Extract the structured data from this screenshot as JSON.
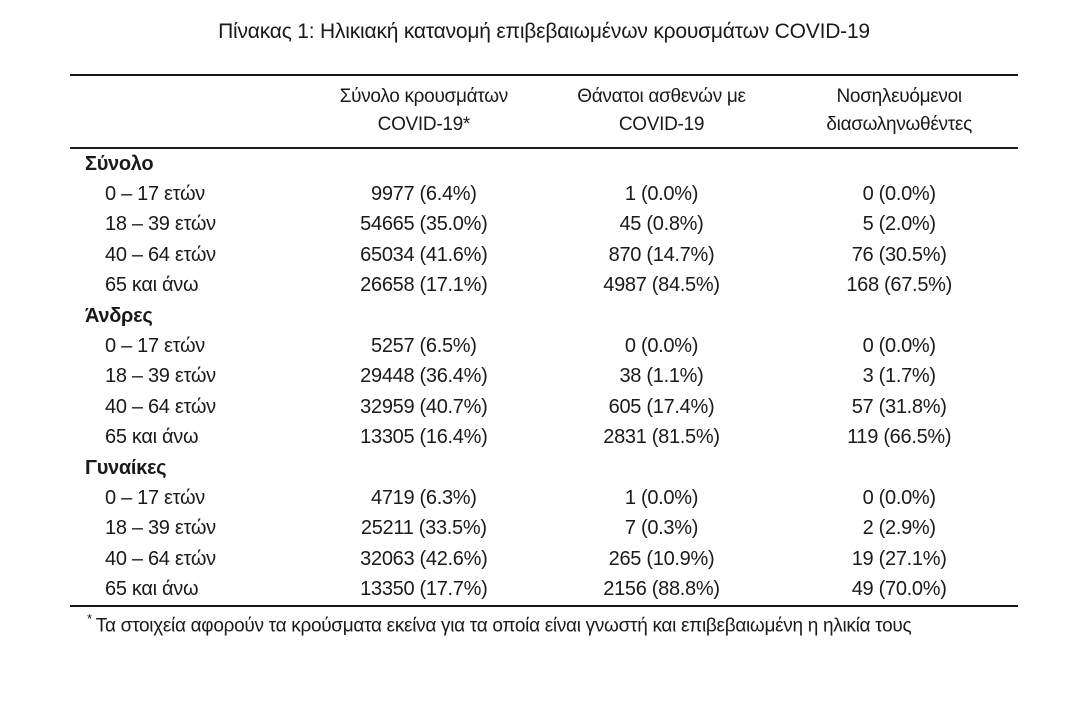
{
  "title": "Πίνακας 1: Ηλικιακή κατανομή επιβεβαιωμένων κρουσμάτων COVID-19",
  "table": {
    "columns": [
      {
        "line1": "Σύνολο κρουσμάτων",
        "line2": "COVID-19*"
      },
      {
        "line1": "Θάνατοι ασθενών με",
        "line2": "COVID-19"
      },
      {
        "line1": "Νοσηλευόμενοι",
        "line2": "διασωληνωθέντες"
      }
    ],
    "sections": [
      {
        "label": "Σύνολο",
        "rows": [
          {
            "age": "0 – 17 ετών",
            "cases": "9977 (6.4%)",
            "deaths": "1 (0.0%)",
            "intubated": "0 (0.0%)"
          },
          {
            "age": "18 – 39 ετών",
            "cases": "54665 (35.0%)",
            "deaths": "45 (0.8%)",
            "intubated": "5 (2.0%)"
          },
          {
            "age": "40 – 64 ετών",
            "cases": "65034 (41.6%)",
            "deaths": "870 (14.7%)",
            "intubated": "76 (30.5%)"
          },
          {
            "age": "65 και άνω",
            "cases": "26658 (17.1%)",
            "deaths": "4987 (84.5%)",
            "intubated": "168 (67.5%)"
          }
        ]
      },
      {
        "label": "Άνδρες",
        "rows": [
          {
            "age": "0 – 17 ετών",
            "cases": "5257 (6.5%)",
            "deaths": "0 (0.0%)",
            "intubated": "0 (0.0%)"
          },
          {
            "age": "18 – 39 ετών",
            "cases": "29448 (36.4%)",
            "deaths": "38 (1.1%)",
            "intubated": "3 (1.7%)"
          },
          {
            "age": "40 – 64 ετών",
            "cases": "32959 (40.7%)",
            "deaths": "605 (17.4%)",
            "intubated": "57 (31.8%)"
          },
          {
            "age": "65 και άνω",
            "cases": "13305 (16.4%)",
            "deaths": "2831 (81.5%)",
            "intubated": "119 (66.5%)"
          }
        ]
      },
      {
        "label": "Γυναίκες",
        "rows": [
          {
            "age": "0 – 17 ετών",
            "cases": "4719 (6.3%)",
            "deaths": "1 (0.0%)",
            "intubated": "0 (0.0%)"
          },
          {
            "age": "18 – 39 ετών",
            "cases": "25211 (33.5%)",
            "deaths": "7 (0.3%)",
            "intubated": "2 (2.9%)"
          },
          {
            "age": "40 – 64 ετών",
            "cases": "32063 (42.6%)",
            "deaths": "265 (10.9%)",
            "intubated": "19 (27.1%)"
          },
          {
            "age": "65 και άνω",
            "cases": "13350 (17.7%)",
            "deaths": "2156 (88.8%)",
            "intubated": "49 (70.0%)"
          }
        ]
      }
    ]
  },
  "footnote": {
    "marker": "*",
    "text": "Τα στοιχεία αφορούν τα κρούσματα εκείνα για τα οποία είναι γνωστή και επιβεβαιωμένη η ηλικία τους"
  },
  "colors": {
    "text": "#1a1a1a",
    "rule": "#151515",
    "background": "#ffffff"
  }
}
